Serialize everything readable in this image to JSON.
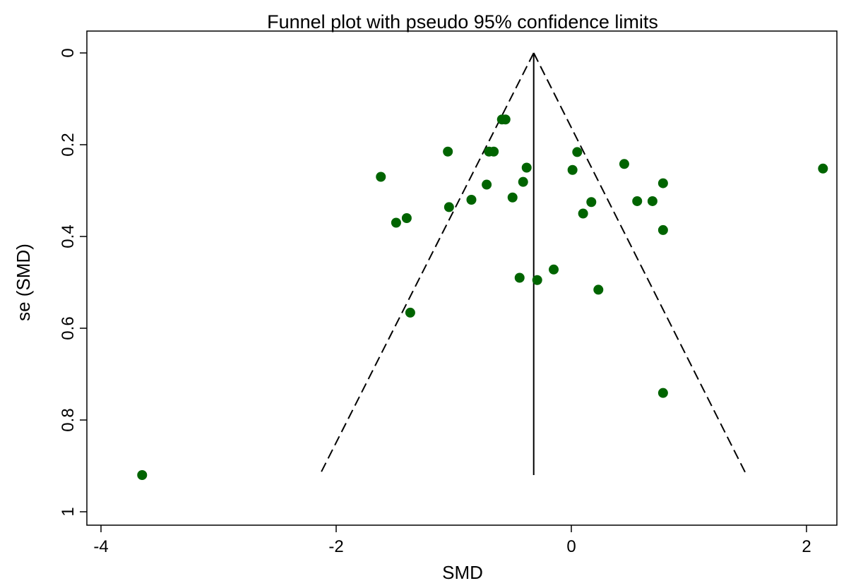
{
  "chart_data": {
    "type": "scatter",
    "title": "Funnel plot with pseudo 95% confidence limits",
    "xlabel": "SMD",
    "ylabel": "se (SMD)",
    "xlim": [
      -4.05,
      2.25
    ],
    "ylim": [
      0,
      1.03
    ],
    "y_axis_inverted": true,
    "x_ticks": [
      -4,
      -2,
      0,
      2
    ],
    "x_tick_labels": [
      "-4",
      "-2",
      "0",
      "2"
    ],
    "y_ticks": [
      0,
      0.2,
      0.4,
      0.6,
      0.8,
      1
    ],
    "y_tick_labels": [
      "0",
      "0.2",
      "0.4",
      "0.6",
      "0.8",
      "1"
    ],
    "grid": false,
    "legend": "none",
    "pooled_estimate": -0.32,
    "se_max": 0.92,
    "ci_lines": {
      "left": [
        {
          "x": -0.32,
          "y": 0
        },
        {
          "x": -2.14,
          "y": 0.92
        }
      ],
      "right": [
        {
          "x": -0.32,
          "y": 0
        },
        {
          "x": 1.49,
          "y": 0.92
        }
      ]
    },
    "points": [
      {
        "x": -3.65,
        "y": 0.92
      },
      {
        "x": -1.62,
        "y": 0.27
      },
      {
        "x": -1.49,
        "y": 0.37
      },
      {
        "x": -1.4,
        "y": 0.36
      },
      {
        "x": -1.37,
        "y": 0.566
      },
      {
        "x": -1.05,
        "y": 0.215
      },
      {
        "x": -1.04,
        "y": 0.336
      },
      {
        "x": -0.85,
        "y": 0.32
      },
      {
        "x": -0.72,
        "y": 0.287
      },
      {
        "x": -0.7,
        "y": 0.215
      },
      {
        "x": -0.66,
        "y": 0.215
      },
      {
        "x": -0.59,
        "y": 0.145
      },
      {
        "x": -0.56,
        "y": 0.145
      },
      {
        "x": -0.5,
        "y": 0.315
      },
      {
        "x": -0.44,
        "y": 0.49
      },
      {
        "x": -0.41,
        "y": 0.281
      },
      {
        "x": -0.38,
        "y": 0.25
      },
      {
        "x": -0.29,
        "y": 0.495
      },
      {
        "x": -0.15,
        "y": 0.472
      },
      {
        "x": 0.01,
        "y": 0.255
      },
      {
        "x": 0.05,
        "y": 0.216
      },
      {
        "x": 0.1,
        "y": 0.35
      },
      {
        "x": 0.17,
        "y": 0.325
      },
      {
        "x": 0.23,
        "y": 0.516
      },
      {
        "x": 0.45,
        "y": 0.242
      },
      {
        "x": 0.56,
        "y": 0.323
      },
      {
        "x": 0.69,
        "y": 0.323
      },
      {
        "x": 0.78,
        "y": 0.284
      },
      {
        "x": 0.78,
        "y": 0.386
      },
      {
        "x": 0.78,
        "y": 0.741
      },
      {
        "x": 2.14,
        "y": 0.252
      }
    ],
    "colors": {
      "points": "#006400",
      "lines": "#000000",
      "background": "#ffffff"
    }
  }
}
